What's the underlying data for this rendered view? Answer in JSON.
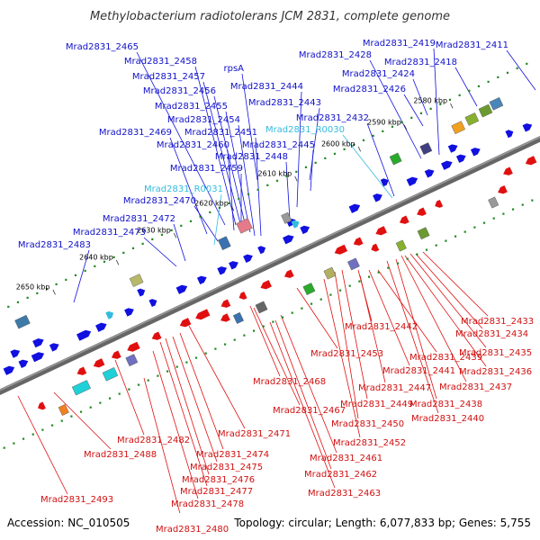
{
  "title": "Methylobacterium radiotolerans JCM 2831, complete genome",
  "footer": {
    "accession": "Accession: NC_010505",
    "summary": "Topology: circular; Length: 6,077,833 bp; Genes: 5,755"
  },
  "colors": {
    "forward_gene": "#1010e0",
    "reverse_gene": "#e01010",
    "rna_gene": "#33bbdd",
    "backbone": "#666666",
    "dots": "#228822"
  },
  "ticks": [
    {
      "label": "2580 kbp"
    },
    {
      "label": "2590 kbp"
    },
    {
      "label": "2600 kbp"
    },
    {
      "label": "2610 kbp"
    },
    {
      "label": "2620 kbp"
    },
    {
      "label": "2630 kbp"
    },
    {
      "label": "2640 kbp"
    },
    {
      "label": "2650 kbp"
    }
  ],
  "labels_forward": [
    "Mrad2831_2465",
    "Mrad2831_2458",
    "Mrad2831_2457",
    "Mrad2831_2456",
    "Mrad2831_2455",
    "Mrad2831_2454",
    "Mrad2831_2469",
    "Mrad2831_2451",
    "Mrad2831_2460",
    "Mrad2831_2448",
    "Mrad2831_2459",
    "Mrad2831_2470",
    "Mrad2831_2472",
    "Mrad2831_2473",
    "Mrad2831_2483",
    "rpsA",
    "Mrad2831_2444",
    "Mrad2831_2443",
    "Mrad2831_2432",
    "Mrad2831_2445",
    "Mrad2831_2419",
    "Mrad2831_2411",
    "Mrad2831_2428",
    "Mrad2831_2418",
    "Mrad2831_2424",
    "Mrad2831_2426"
  ],
  "labels_rna": [
    "Mrad2831_R0030",
    "Mrad2831_R0031"
  ],
  "labels_reverse": [
    "Mrad2831_2433",
    "Mrad2831_2434",
    "Mrad2831_2442",
    "Mrad2831_2435",
    "Mrad2831_2439",
    "Mrad2831_2436",
    "Mrad2831_2441",
    "Mrad2831_2453",
    "Mrad2831_2437",
    "Mrad2831_2447",
    "Mrad2831_2438",
    "Mrad2831_2468",
    "Mrad2831_2449",
    "Mrad2831_2440",
    "Mrad2831_2467",
    "Mrad2831_2450",
    "Mrad2831_2471",
    "Mrad2831_2452",
    "Mrad2831_2482",
    "Mrad2831_2474",
    "Mrad2831_2461",
    "Mrad2831_2488",
    "Mrad2831_2475",
    "Mrad2831_2462",
    "Mrad2831_2476",
    "Mrad2831_2477",
    "Mrad2831_2463",
    "Mrad2831_2493",
    "Mrad2831_2478",
    "Mrad2831_2480"
  ]
}
